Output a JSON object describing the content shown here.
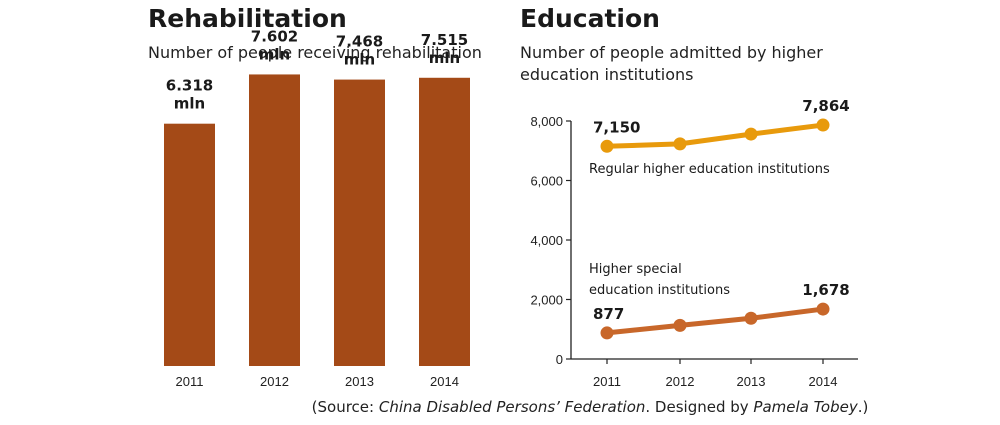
{
  "colors": {
    "bar": "#a44a17",
    "regular_line": "#e89a0c",
    "special_line": "#c8672a",
    "axis": "#222222"
  },
  "rehabilitation": {
    "title": "Rehabilitation",
    "subtitle": "Number of people receiving rehabilitation"
  },
  "education": {
    "title": "Education",
    "subtitle": "Number of people admitted by higher education institutions"
  },
  "source": {
    "prefix": "(Source: ",
    "org": "China Disabled Persons’ Federation",
    "middle": ". Designed by ",
    "designer": "Pamela Tobey",
    "suffix": ".)"
  },
  "chart_data": [
    {
      "type": "bar",
      "title": "Rehabilitation",
      "subtitle": "Number of people receiving rehabilitation",
      "categories": [
        "2011",
        "2012",
        "2013",
        "2014"
      ],
      "values": [
        6.318,
        7.602,
        7.468,
        7.515
      ],
      "data_labels": [
        "6.318 mln",
        "7.602 mln",
        "7.468 mln",
        "7.515 mln"
      ],
      "unit": "mln",
      "ylim": [
        0,
        8.5
      ],
      "grid": false,
      "legend": "none"
    },
    {
      "type": "line",
      "title": "Education",
      "subtitle": "Number of people admitted by higher education institutions",
      "x": [
        "2011",
        "2012",
        "2013",
        "2014"
      ],
      "series": [
        {
          "name": "Regular higher education institutions",
          "values": [
            7150,
            7230,
            7560,
            7864
          ],
          "labels": {
            "0": "7,150",
            "3": "7,864"
          }
        },
        {
          "name": "Higher special education institutions",
          "values": [
            877,
            1130,
            1370,
            1678
          ],
          "labels": {
            "0": "877",
            "3": "1,678"
          }
        }
      ],
      "yticks": [
        "0",
        "2,000",
        "4,000",
        "6,000",
        "8,000"
      ],
      "ytick_values": [
        0,
        2000,
        4000,
        6000,
        8000
      ],
      "ylim": [
        0,
        8000
      ],
      "grid": false,
      "legend": "inline labels"
    }
  ]
}
